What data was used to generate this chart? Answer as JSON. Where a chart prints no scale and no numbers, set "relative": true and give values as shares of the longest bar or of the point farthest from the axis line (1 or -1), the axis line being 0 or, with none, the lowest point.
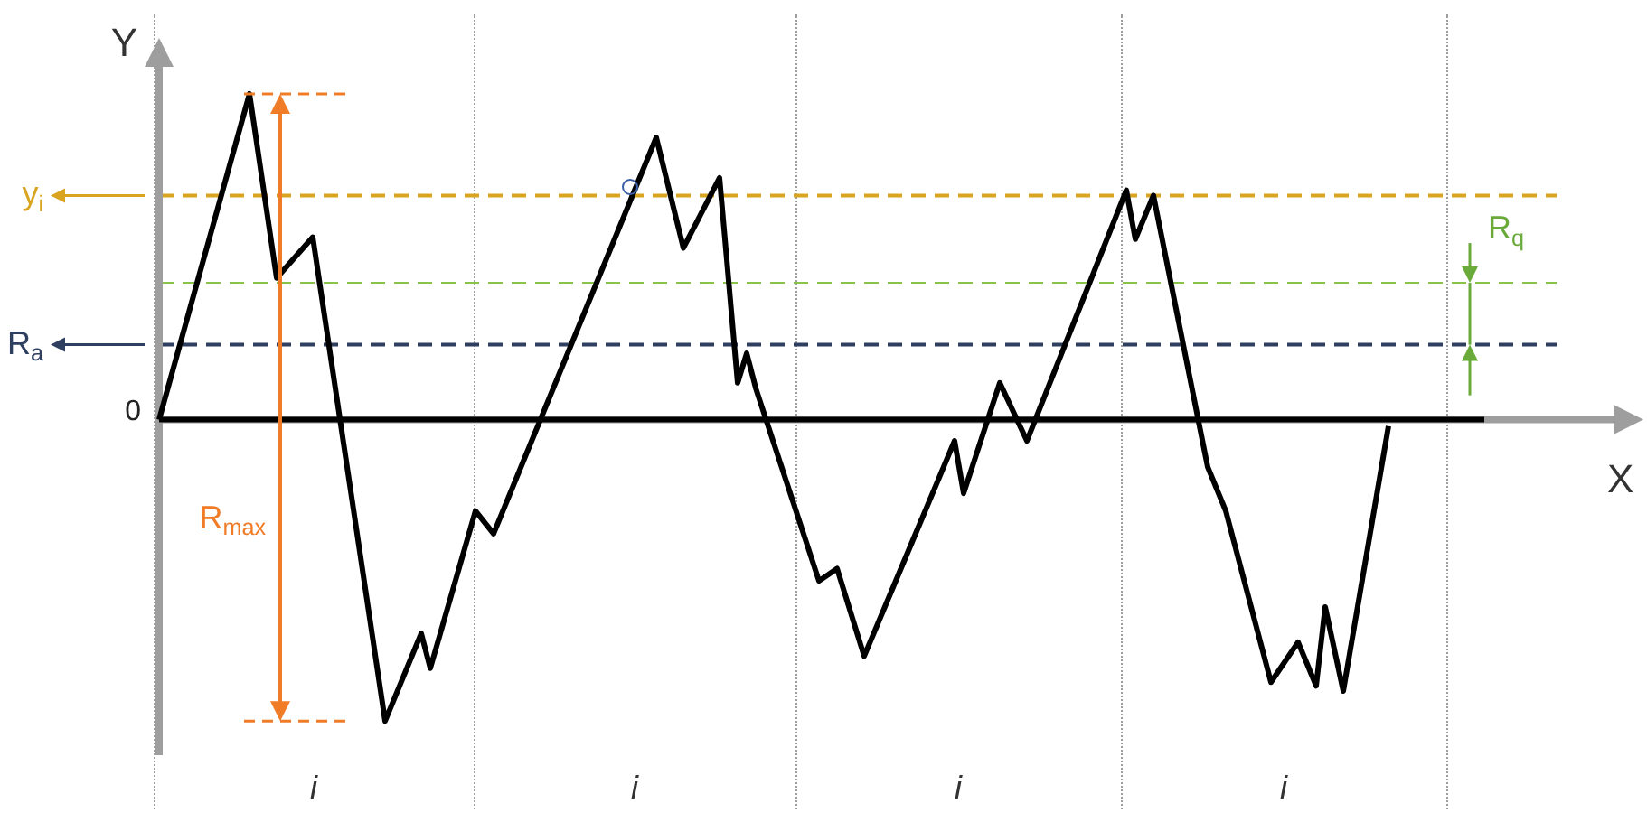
{
  "chart_data": {
    "type": "line",
    "relative": true,
    "ylabel": "Y",
    "categories": [
      null,
      null,
      null,
      null,
      null,
      null,
      null,
      null,
      null,
      null,
      null,
      null,
      null,
      null,
      null,
      null,
      null,
      null,
      null,
      null,
      null,
      null,
      null,
      null,
      null,
      null,
      null,
      null,
      null,
      null,
      null,
      null,
      null,
      null,
      null,
      null,
      null,
      null,
      null,
      null,
      null,
      null,
      null,
      null,
      null,
      null,
      null,
      null,
      null,
      null,
      null,
      null,
      null,
      null,
      null,
      null,
      null,
      null,
      null,
      null,
      null,
      null,
      null,
      null,
      null,
      null,
      null,
      null,
      null,
      null,
      null,
      null,
      null,
      null,
      null,
      null,
      null,
      null,
      null,
      null,
      null,
      null,
      null,
      null,
      null,
      null,
      null,
      null,
      null,
      null,
      null,
      null,
      null,
      null,
      null,
      null,
      null,
      null,
      null,
      null,
      null,
      null,
      null,
      null,
      null,
      null,
      null,
      null,
      null,
      null,
      null,
      null,
      null,
      null,
      null,
      null,
      null,
      null,
      null,
      null,
      null,
      null,
      null,
      null,
      null,
      null,
      null,
      null,
      null,
      null,
      null,
      null,
      null,
      null,
      null,
      null,
      null
    ],
    "series": [
      {
        "color": "#000000",
        "values": [
          0,
          null,
          null,
          null,
          null,
          null,
          null,
          null,
          null,
          null,
          1,
          null,
          null,
          0.435,
          null,
          null,
          null,
          0.56,
          null,
          null,
          null,
          null,
          null,
          null,
          null,
          -0.925,
          null,
          null,
          null,
          -0.656,
          -0.763,
          null,
          null,
          null,
          null,
          -0.28,
          null,
          -0.35,
          null,
          null,
          null,
          null,
          null,
          null,
          null,
          null,
          null,
          null,
          null,
          null,
          null,
          null,
          null,
          null,
          null,
          0.866,
          null,
          null,
          0.527,
          null,
          null,
          null,
          0.742,
          null,
          0.113,
          0.204,
          0.097,
          null,
          null,
          null,
          null,
          null,
          null,
          -0.495,
          null,
          -0.457,
          null,
          null,
          -0.726,
          null,
          null,
          null,
          null,
          null,
          null,
          null,
          null,
          null,
          -0.065,
          -0.226,
          null,
          null,
          null,
          0.113,
          null,
          null,
          -0.065,
          null,
          null,
          null,
          null,
          null,
          null,
          null,
          null,
          null,
          null,
          0.704,
          0.554,
          null,
          0.688,
          null,
          null,
          null,
          null,
          null,
          -0.145,
          null,
          -0.28,
          null,
          null,
          null,
          null,
          -0.806,
          null,
          null,
          -0.683,
          null,
          -0.817,
          -0.575,
          null,
          -0.833,
          null,
          null,
          null,
          null,
          -0.02
        ]
      }
    ],
    "ref_lines": [
      {
        "axis": "y",
        "value": 0.688,
        "label": "y$_{i}$",
        "color": "#d9a520",
        "line_style": "dashed"
      },
      {
        "axis": "y",
        "value": 0.42,
        "color": "#8bc34a",
        "line_style": "dashed"
      },
      {
        "axis": "y",
        "value": 0.23,
        "label": "R$_{a}$",
        "color": "#2f3f5f",
        "line_style": "dashed"
      }
    ],
    "annotations": [
      "0",
      "R$_{max}$",
      "R$_{q}$",
      "X",
      "i",
      "i",
      "i",
      "i"
    ]
  }
}
